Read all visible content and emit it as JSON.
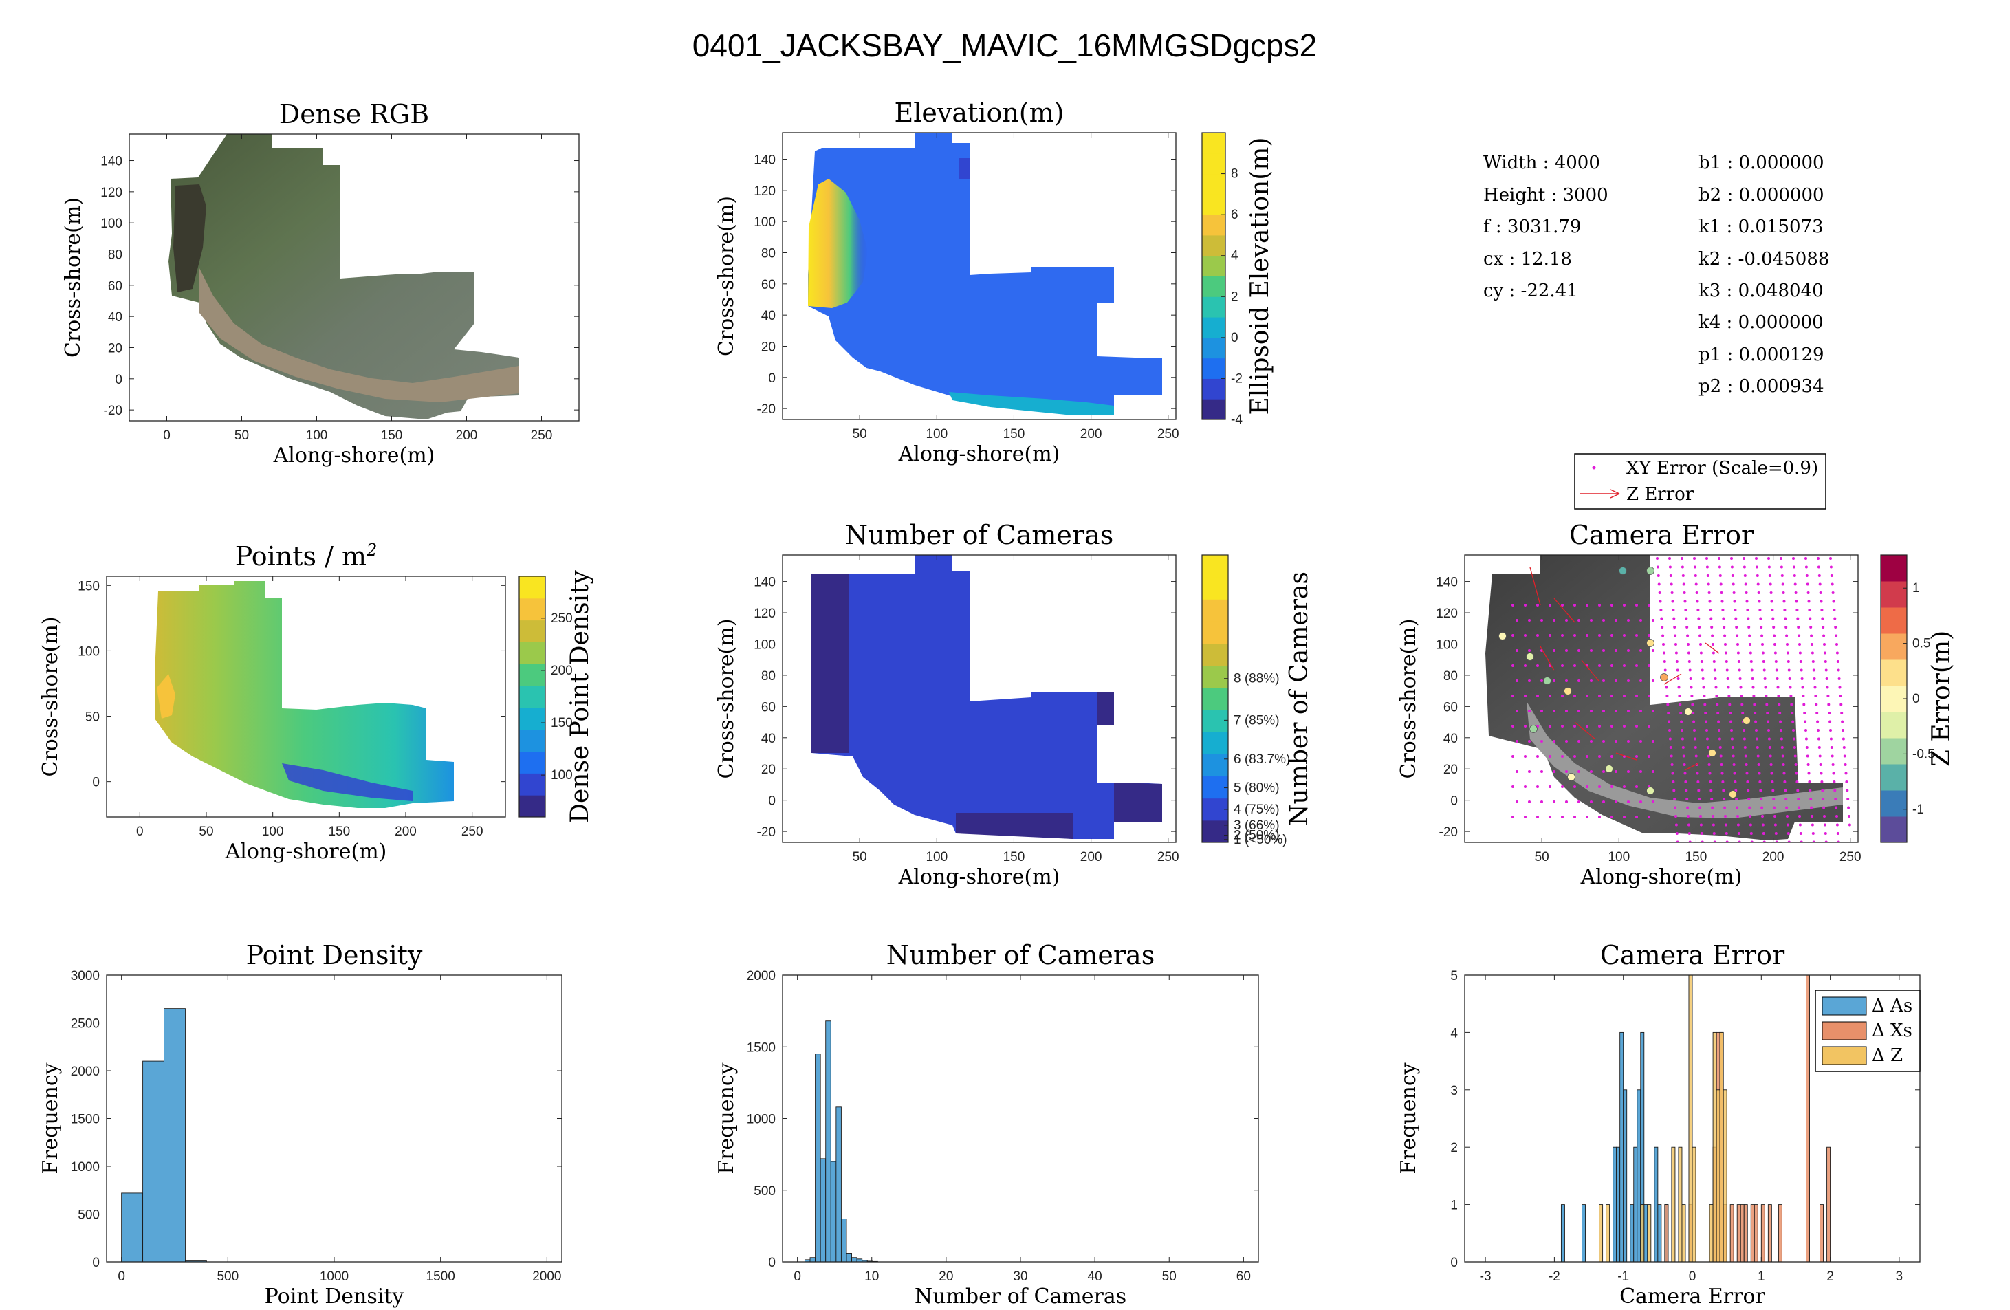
{
  "figure_title": "0401_JACKSBAY_MAVIC_16MMGSDgcps2",
  "colors": {
    "hist_blue": "#5aa6d6",
    "hist_orange": "#e8906a",
    "hist_yellow": "#f2c462",
    "parula": [
      "#352a87",
      "#3145d0",
      "#1e6ff0",
      "#1d92e0",
      "#16aed0",
      "#2ac3b0",
      "#4cca7e",
      "#9bc94b",
      "#cdbc38",
      "#f6c33b",
      "#f9e521"
    ],
    "zerr_cmap": [
      "#5c4c9a",
      "#3a7cb8",
      "#5ab1a8",
      "#9fd4a0",
      "#dff0a8",
      "#fdf6b6",
      "#fde08b",
      "#f8a85e",
      "#ee6b47",
      "#d13b4c",
      "#9e0142"
    ],
    "xy_error_dots": "#e01cd8",
    "z_error_arrows": "#e0202a"
  },
  "info_panel": {
    "left": [
      "Width : 4000",
      "Height : 3000",
      "f : 3031.79",
      "cx : 12.18",
      "cy : -22.41"
    ],
    "right": [
      "b1 : 0.000000",
      "b2 : 0.000000",
      "k1 : 0.015073",
      "k2 : -0.045088",
      "k3 : 0.048040",
      "k4 : 0.000000",
      "p1 : 0.000129",
      "p2 : 0.000934"
    ]
  },
  "legend_camera_error_map": {
    "dots": "XY Error (Scale=0.9)",
    "arrow": "Z Error"
  },
  "chart_data": [
    {
      "id": "dense_rgb",
      "type": "image",
      "title": "Dense RGB",
      "xlabel": "Along-shore(m)",
      "ylabel": "Cross-shore(m)",
      "xlim": [
        -25,
        275
      ],
      "ylim": [
        -27,
        157
      ],
      "xticks": [
        0,
        50,
        100,
        150,
        200,
        250
      ],
      "yticks": [
        -20,
        0,
        20,
        40,
        60,
        80,
        100,
        120,
        140
      ]
    },
    {
      "id": "elevation",
      "type": "heatmap",
      "title": "Elevation(m)",
      "xlabel": "Along-shore(m)",
      "ylabel": "Cross-shore(m)",
      "xlim": [
        0,
        255
      ],
      "ylim": [
        -27,
        157
      ],
      "xticks": [
        50,
        100,
        150,
        200,
        250
      ],
      "yticks": [
        -20,
        0,
        20,
        40,
        60,
        80,
        100,
        120,
        140
      ],
      "colorbar": {
        "label": "Ellipsoid Elevation(m)",
        "range": [
          -4,
          10
        ],
        "ticks": [
          -4,
          -2,
          0,
          2,
          4,
          6,
          8
        ]
      }
    },
    {
      "id": "points_m2",
      "type": "heatmap",
      "title": "Points / m",
      "title_sup": "2",
      "xlabel": "Along-shore(m)",
      "ylabel": "Cross-shore(m)",
      "xlim": [
        -25,
        275
      ],
      "ylim": [
        -27,
        157
      ],
      "xticks": [
        0,
        50,
        100,
        150,
        200,
        250
      ],
      "yticks": [
        0,
        50,
        100,
        150
      ],
      "colorbar": {
        "label": "Dense Point Density",
        "range": [
          60,
          290
        ],
        "ticks": [
          100,
          150,
          200,
          250
        ]
      }
    },
    {
      "id": "num_cameras_map",
      "type": "heatmap",
      "title": "Number of Cameras",
      "xlabel": "Along-shore(m)",
      "ylabel": "Cross-shore(m)",
      "xlim": [
        0,
        255
      ],
      "ylim": [
        -27,
        157
      ],
      "xticks": [
        50,
        100,
        150,
        200,
        250
      ],
      "yticks": [
        -20,
        0,
        20,
        40,
        60,
        80,
        100,
        120,
        140
      ],
      "colorbar": {
        "label": "Number of Cameras",
        "ticks": [
          "1 (<50%)",
          "2 (50%)",
          "3 (66%)",
          "4 (75%)",
          "5 (80%)",
          "6 (83.7%)",
          "7 (85%)",
          "8 (88%)"
        ]
      }
    },
    {
      "id": "camera_error_map",
      "type": "scatter",
      "title": "Camera Error",
      "xlabel": "Along-shore(m)",
      "ylabel": "Cross-shore(m)",
      "xlim": [
        0,
        255
      ],
      "ylim": [
        -27,
        157
      ],
      "xticks": [
        50,
        100,
        150,
        200,
        250
      ],
      "yticks": [
        -20,
        0,
        20,
        40,
        60,
        80,
        100,
        120,
        140
      ],
      "colorbar": {
        "label": "Z Error(m)",
        "range": [
          -1.3,
          1.3
        ],
        "ticks": [
          -1,
          -0.5,
          0,
          0.5,
          1
        ]
      }
    },
    {
      "id": "hist_point_density",
      "type": "bar",
      "title": "Point Density",
      "xlabel": "Point Density",
      "ylabel": "Frequency",
      "xlim": [
        -70,
        2070
      ],
      "ylim": [
        0,
        3000
      ],
      "xticks": [
        0,
        500,
        1000,
        1500,
        2000
      ],
      "yticks": [
        0,
        500,
        1000,
        1500,
        2000,
        2500,
        3000
      ],
      "bin_edges": [
        0,
        100,
        200,
        300,
        400
      ],
      "values": [
        720,
        2100,
        2650,
        10
      ]
    },
    {
      "id": "hist_num_cameras",
      "type": "bar",
      "title": "Number of Cameras",
      "xlabel": "Number of Cameras",
      "ylabel": "Frequency",
      "xlim": [
        -2,
        62
      ],
      "ylim": [
        0,
        2000
      ],
      "xticks": [
        0,
        10,
        20,
        30,
        40,
        50,
        60
      ],
      "yticks": [
        0,
        500,
        1000,
        1500,
        2000
      ],
      "bin_edges": [
        1,
        1.7,
        2.4,
        3.1,
        3.8,
        4.5,
        5.2,
        5.9,
        6.6,
        7.3,
        8.0,
        8.7,
        9.4,
        10.1,
        10.8
      ],
      "values": [
        15,
        30,
        1450,
        720,
        1680,
        700,
        1080,
        300,
        60,
        30,
        20,
        10,
        5,
        3
      ]
    },
    {
      "id": "hist_camera_error",
      "type": "bar",
      "title": "Camera Error",
      "xlabel": "Camera Error",
      "ylabel": "Frequency",
      "xlim": [
        -3.3,
        3.3
      ],
      "ylim": [
        0,
        5
      ],
      "xticks": [
        -3,
        -2,
        -1,
        0,
        1,
        2,
        3
      ],
      "yticks": [
        0,
        1,
        2,
        3,
        4,
        5
      ],
      "legend_position": "top-right",
      "series": [
        {
          "name": "Δ As",
          "bins": [
            [
              -1.9,
              -1.85,
              1
            ],
            [
              -1.6,
              -1.55,
              1
            ],
            [
              -1.15,
              -1.1,
              2
            ],
            [
              -1.1,
              -1.05,
              2
            ],
            [
              -1.05,
              -1.0,
              4
            ],
            [
              -1.0,
              -0.95,
              3
            ],
            [
              -0.9,
              -0.85,
              1
            ],
            [
              -0.85,
              -0.8,
              2
            ],
            [
              -0.8,
              -0.75,
              3
            ],
            [
              -0.75,
              -0.7,
              4
            ],
            [
              -0.7,
              -0.65,
              1
            ],
            [
              -0.55,
              -0.5,
              2
            ],
            [
              -0.5,
              -0.45,
              1
            ],
            [
              -0.4,
              -0.35,
              1
            ]
          ]
        },
        {
          "name": "Δ Xs",
          "bins": [
            [
              -0.4,
              -0.35,
              1
            ],
            [
              -0.05,
              0.0,
              1
            ],
            [
              0.3,
              0.35,
              2
            ],
            [
              0.35,
              0.4,
              4
            ],
            [
              0.4,
              0.45,
              4
            ],
            [
              0.45,
              0.5,
              1
            ],
            [
              0.55,
              0.6,
              1
            ],
            [
              0.65,
              0.7,
              1
            ],
            [
              0.7,
              0.75,
              1
            ],
            [
              0.75,
              0.8,
              1
            ],
            [
              0.85,
              0.9,
              1
            ],
            [
              0.9,
              0.95,
              1
            ],
            [
              1.0,
              1.05,
              1
            ],
            [
              1.1,
              1.15,
              1
            ],
            [
              1.25,
              1.3,
              1
            ],
            [
              1.65,
              1.7,
              5
            ],
            [
              1.85,
              1.9,
              1
            ],
            [
              1.95,
              2.0,
              2
            ]
          ]
        },
        {
          "name": "Δ Z",
          "bins": [
            [
              -1.35,
              -1.3,
              1
            ],
            [
              -1.25,
              -1.2,
              1
            ],
            [
              -0.75,
              -0.7,
              1
            ],
            [
              -0.65,
              -0.6,
              1
            ],
            [
              -0.3,
              -0.25,
              2
            ],
            [
              -0.2,
              -0.15,
              2
            ],
            [
              -0.15,
              -0.1,
              1
            ],
            [
              -0.05,
              0.0,
              5
            ],
            [
              0.0,
              0.05,
              2
            ],
            [
              0.25,
              0.3,
              1
            ],
            [
              0.3,
              0.35,
              4
            ],
            [
              0.35,
              0.4,
              3
            ],
            [
              0.4,
              0.45,
              4
            ],
            [
              0.45,
              0.5,
              3
            ]
          ]
        }
      ]
    }
  ]
}
